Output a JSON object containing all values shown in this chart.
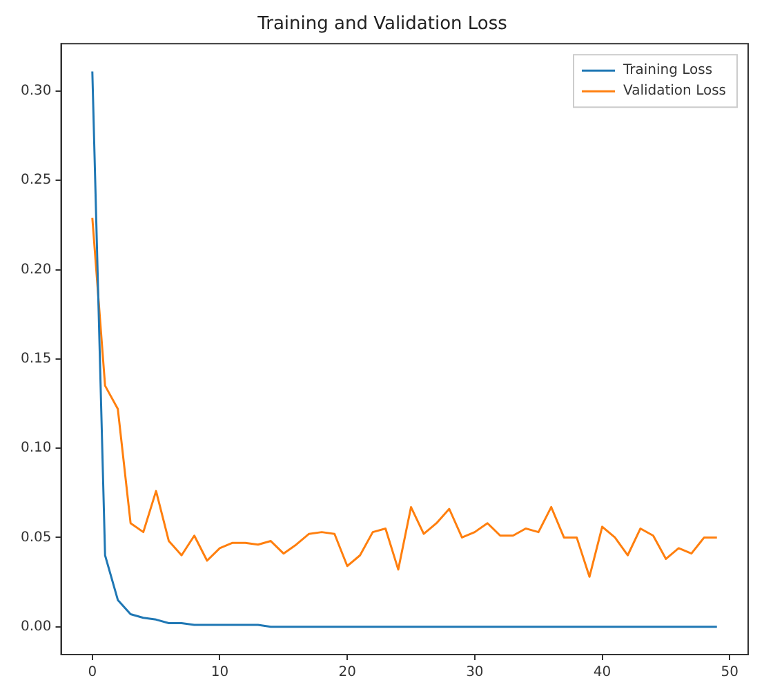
{
  "chart_data": {
    "type": "line",
    "title": "Training and Validation Loss",
    "x": [
      0,
      1,
      2,
      3,
      4,
      5,
      6,
      7,
      8,
      9,
      10,
      11,
      12,
      13,
      14,
      15,
      16,
      17,
      18,
      19,
      20,
      21,
      22,
      23,
      24,
      25,
      26,
      27,
      28,
      29,
      30,
      31,
      32,
      33,
      34,
      35,
      36,
      37,
      38,
      39,
      40,
      41,
      42,
      43,
      44,
      45,
      46,
      47,
      48,
      49
    ],
    "series": [
      {
        "name": "Training Loss",
        "color": "#1f77b4",
        "values": [
          0.311,
          0.04,
          0.015,
          0.007,
          0.005,
          0.004,
          0.002,
          0.002,
          0.001,
          0.001,
          0.001,
          0.001,
          0.001,
          0.001,
          0,
          0,
          0,
          0,
          0,
          0,
          0,
          0,
          0,
          0,
          0,
          0,
          0,
          0,
          0,
          0,
          0,
          0,
          0,
          0,
          0,
          0,
          0,
          0,
          0,
          0,
          0,
          0,
          0,
          0,
          0,
          0,
          0,
          0,
          0,
          0
        ]
      },
      {
        "name": "Validation Loss",
        "color": "#ff7f0e",
        "values": [
          0.229,
          0.135,
          0.122,
          0.058,
          0.053,
          0.076,
          0.048,
          0.04,
          0.051,
          0.037,
          0.044,
          0.047,
          0.047,
          0.046,
          0.048,
          0.041,
          0.046,
          0.052,
          0.053,
          0.052,
          0.034,
          0.04,
          0.053,
          0.055,
          0.032,
          0.067,
          0.052,
          0.058,
          0.066,
          0.05,
          0.053,
          0.058,
          0.051,
          0.051,
          0.055,
          0.053,
          0.067,
          0.05,
          0.05,
          0.028,
          0.056,
          0.05,
          0.04,
          0.055,
          0.051,
          0.038,
          0.044,
          0.041,
          0.05,
          0.05
        ]
      }
    ],
    "xlim": [
      -2.45,
      51.45
    ],
    "xticks": [
      0,
      10,
      20,
      30,
      40,
      50
    ],
    "ylim": [
      -0.0156,
      0.3266
    ],
    "yticks": [
      {
        "value": 0,
        "label": "0.00"
      },
      {
        "value": 0.05,
        "label": "0.05"
      },
      {
        "value": 0.1,
        "label": "0.10"
      },
      {
        "value": 0.15,
        "label": "0.15"
      },
      {
        "value": 0.2,
        "label": "0.20"
      },
      {
        "value": 0.25,
        "label": "0.25"
      },
      {
        "value": 0.3,
        "label": "0.30"
      }
    ],
    "legend": "top right",
    "grid": false,
    "marker": "none",
    "line_style": "solid"
  }
}
